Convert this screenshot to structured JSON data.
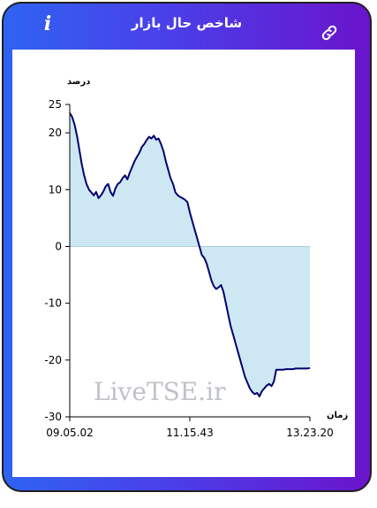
{
  "header": {
    "title": "شاخص حال بازار",
    "info_label": "i",
    "link_icon": "link-icon"
  },
  "colors": {
    "gradient_start": "#2f63f2",
    "gradient_end": "#6a14cc",
    "line": "#00006e",
    "fill": "#cde8f3"
  },
  "chart_data": {
    "type": "area",
    "ylabel": "درصد",
    "xlabel": "زمان",
    "ylim": [
      -30,
      25
    ],
    "yticks": [
      "25",
      "20",
      "10",
      "0",
      "-10",
      "-20",
      "-30"
    ],
    "xticks": [
      "09.05.02",
      "11.15.43",
      "13.23.20"
    ],
    "watermark": "LiveTSE.ir",
    "grid": false,
    "series": [
      {
        "values": [
          [
            0,
            23.5
          ],
          [
            1,
            22.8
          ],
          [
            2,
            21.5
          ],
          [
            3,
            19.5
          ],
          [
            4,
            17
          ],
          [
            5,
            14.5
          ],
          [
            6,
            12.5
          ],
          [
            7,
            11
          ],
          [
            8,
            10
          ],
          [
            9,
            9.5
          ],
          [
            10,
            9
          ],
          [
            11,
            9.6
          ],
          [
            12,
            8.5
          ],
          [
            13,
            9
          ],
          [
            14,
            9.7
          ],
          [
            15,
            10.6
          ],
          [
            16,
            11
          ],
          [
            17,
            9.6
          ],
          [
            18,
            8.9
          ],
          [
            19,
            10.2
          ],
          [
            20,
            11
          ],
          [
            21,
            11.3
          ],
          [
            22,
            12
          ],
          [
            23,
            12.5
          ],
          [
            24,
            11.8
          ],
          [
            25,
            13
          ],
          [
            26,
            14
          ],
          [
            27,
            15
          ],
          [
            28,
            15.8
          ],
          [
            29,
            16.5
          ],
          [
            30,
            17.5
          ],
          [
            31,
            18
          ],
          [
            32,
            18.7
          ],
          [
            33,
            19.3
          ],
          [
            34,
            19
          ],
          [
            35,
            19.5
          ],
          [
            36,
            18.8
          ],
          [
            37,
            19
          ],
          [
            38,
            18
          ],
          [
            39,
            16.8
          ],
          [
            40,
            15
          ],
          [
            41,
            13.5
          ],
          [
            42,
            12
          ],
          [
            43,
            11
          ],
          [
            44,
            9.5
          ],
          [
            45,
            9
          ],
          [
            46,
            8.7
          ],
          [
            47,
            8.5
          ],
          [
            48,
            8.2
          ],
          [
            49,
            7.8
          ],
          [
            50,
            6
          ],
          [
            51,
            4.5
          ],
          [
            52,
            3
          ],
          [
            53,
            1.5
          ],
          [
            54,
            0
          ],
          [
            55,
            -1.5
          ],
          [
            56,
            -2
          ],
          [
            57,
            -3
          ],
          [
            58,
            -4.5
          ],
          [
            59,
            -6
          ],
          [
            60,
            -7
          ],
          [
            61,
            -7.5
          ],
          [
            62,
            -7.2
          ],
          [
            63,
            -6.8
          ],
          [
            64,
            -8
          ],
          [
            65,
            -10
          ],
          [
            66,
            -12
          ],
          [
            67,
            -14
          ],
          [
            68,
            -15.5
          ],
          [
            69,
            -17
          ],
          [
            70,
            -18.5
          ],
          [
            71,
            -20
          ],
          [
            72,
            -21.5
          ],
          [
            73,
            -23
          ],
          [
            74,
            -24
          ],
          [
            75,
            -25
          ],
          [
            76,
            -25.6
          ],
          [
            77,
            -26
          ],
          [
            78,
            -25.8
          ],
          [
            79,
            -26.4
          ],
          [
            80,
            -25.5
          ],
          [
            81,
            -25
          ],
          [
            82,
            -24.5
          ],
          [
            83,
            -24.2
          ],
          [
            84,
            -24.6
          ],
          [
            85,
            -23.8
          ],
          [
            86,
            -21.7
          ],
          [
            87,
            -21.7
          ],
          [
            88,
            -21.7
          ],
          [
            89,
            -21.7
          ],
          [
            90,
            -21.6
          ],
          [
            91,
            -21.6
          ],
          [
            92,
            -21.6
          ],
          [
            93,
            -21.6
          ],
          [
            94,
            -21.5
          ],
          [
            95,
            -21.5
          ],
          [
            96,
            -21.5
          ],
          [
            97,
            -21.5
          ],
          [
            98,
            -21.5
          ],
          [
            99,
            -21.5
          ],
          [
            100,
            -21.4
          ]
        ]
      }
    ]
  }
}
